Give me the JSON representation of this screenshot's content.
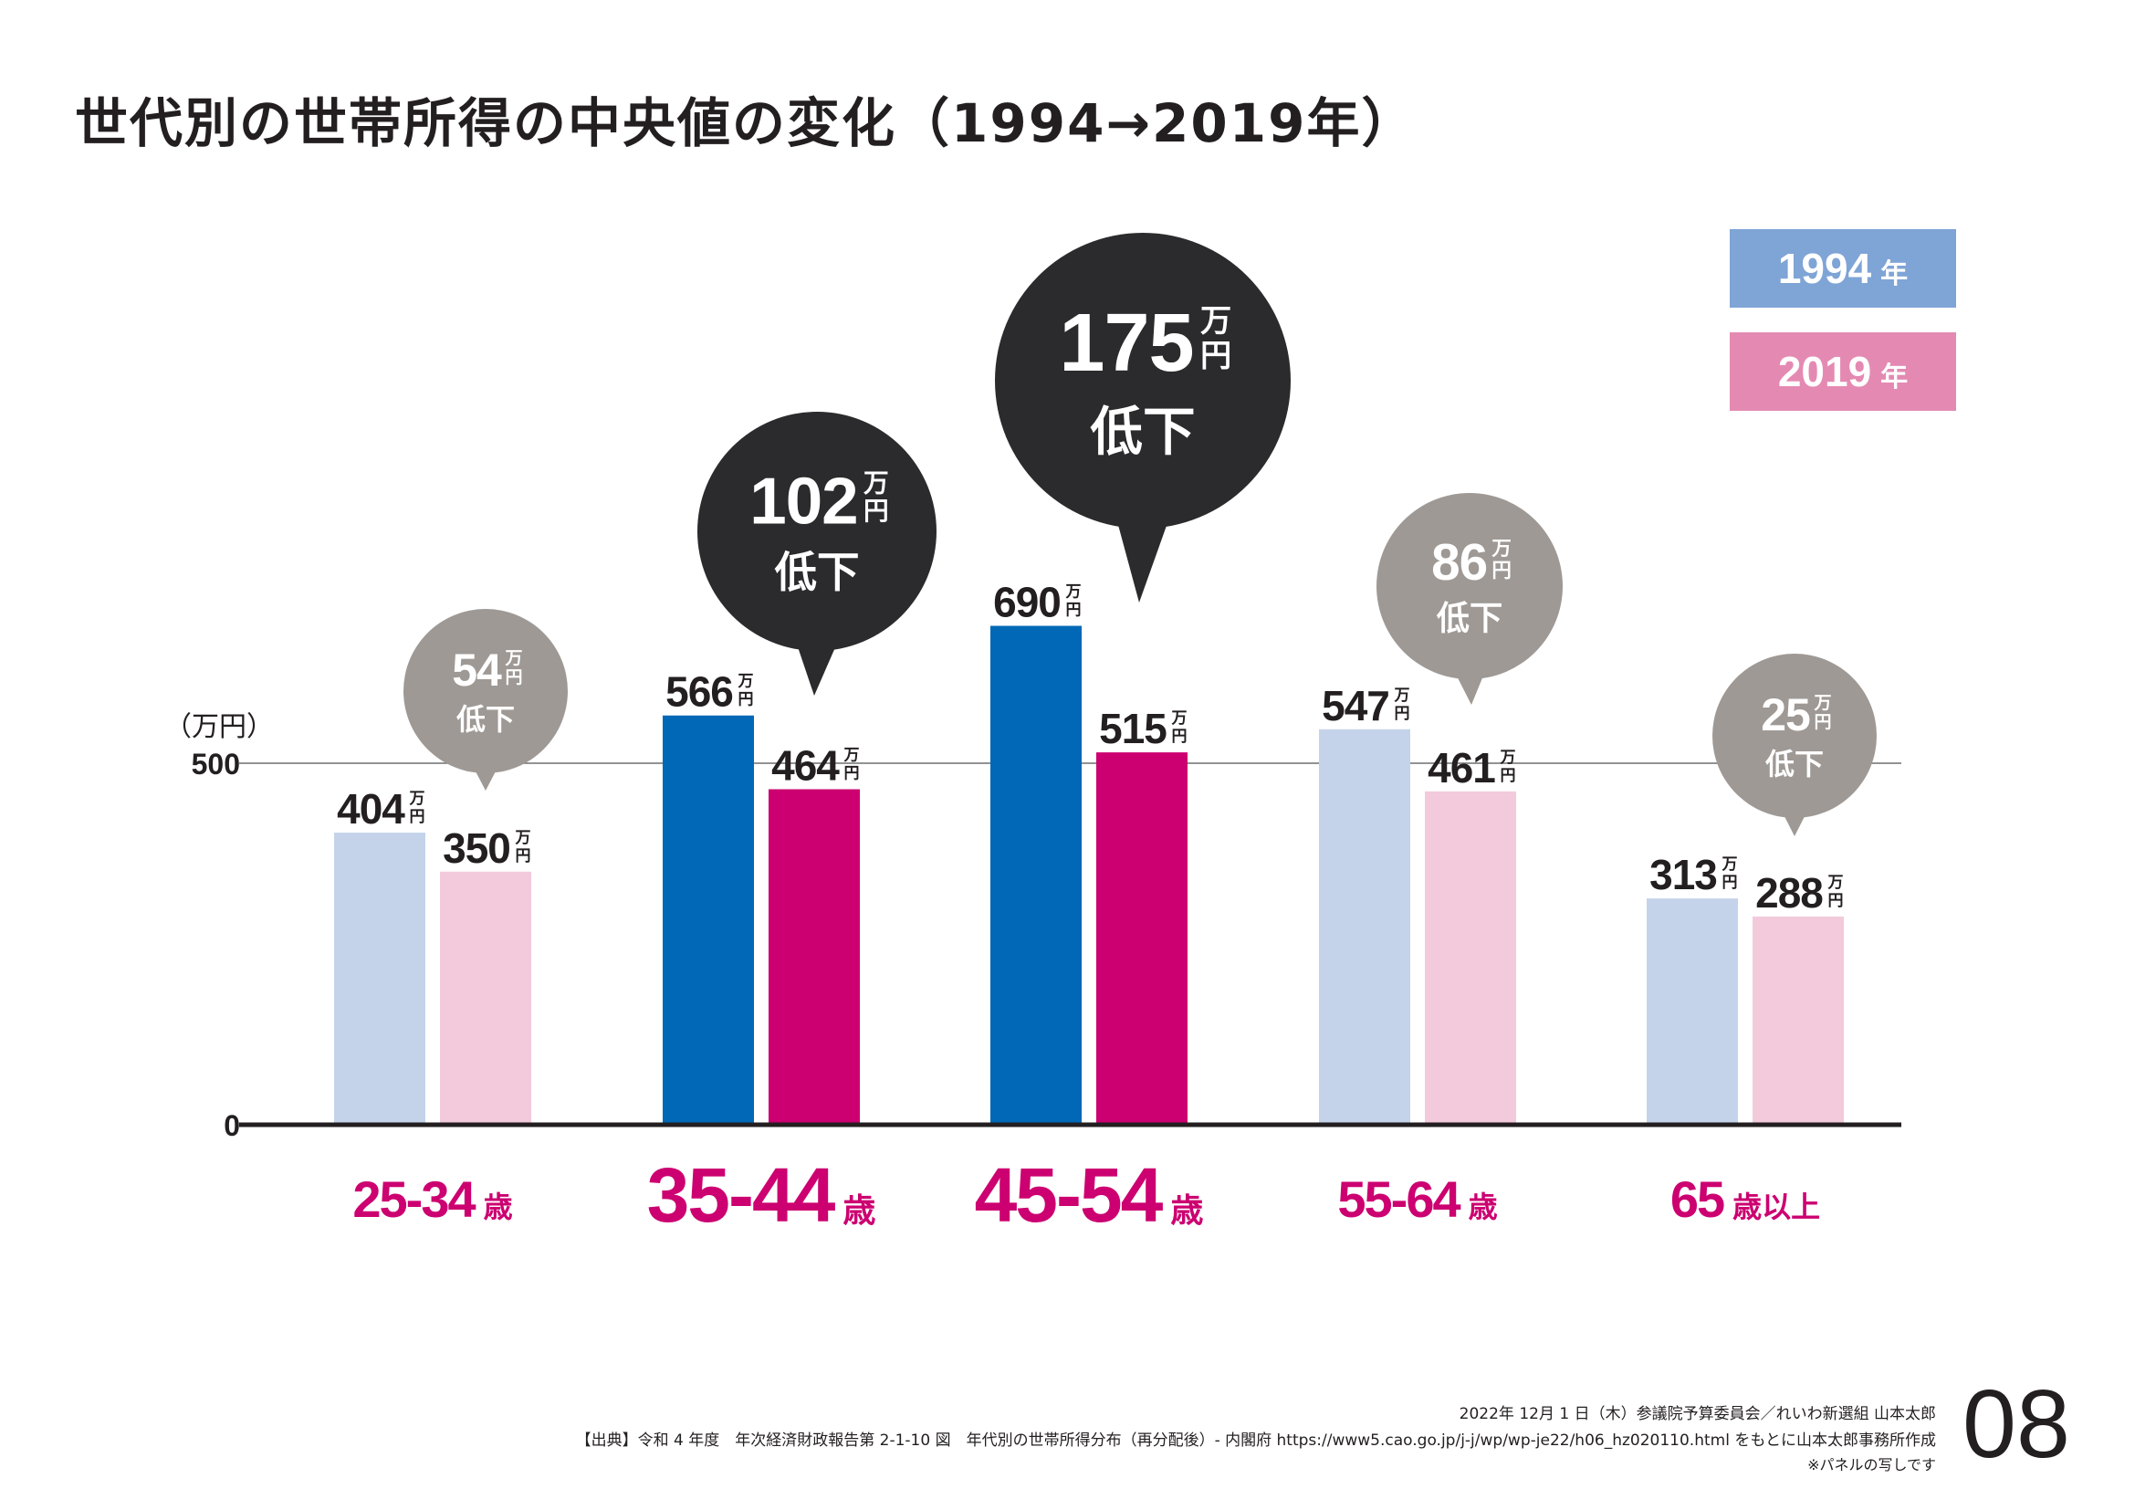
{
  "title": "世代別の世帯所得の中央値の変化（1994→2019年）",
  "legend": [
    {
      "year": "1994",
      "unit": "年",
      "color": "#7fa4d6"
    },
    {
      "year": "2019",
      "unit": "年",
      "color": "#e48ab2"
    }
  ],
  "colors": {
    "muted_1994": "#c5d3ea",
    "muted_2019": "#f3cadb",
    "strong_1994": "#0068b7",
    "strong_2019": "#cc0070",
    "bubble_gray": "#9e9995",
    "bubble_dark": "#2b2b2d",
    "age_label": "#cc0070",
    "text": "#231f20"
  },
  "chart_data": {
    "type": "bar",
    "categories": [
      "25-34",
      "35-44",
      "45-54",
      "55-64",
      "65"
    ],
    "category_suffix": [
      "歳",
      "歳",
      "歳",
      "歳",
      "歳以上"
    ],
    "series": [
      {
        "name": "1994年",
        "values": [
          404,
          566,
          690,
          547,
          313
        ]
      },
      {
        "name": "2019年",
        "values": [
          350,
          464,
          515,
          461,
          288
        ]
      }
    ],
    "highlighted": [
      false,
      true,
      true,
      false,
      false
    ],
    "ylabel": "（万円）",
    "yticks": [
      0,
      500
    ],
    "ylim": [
      0,
      800
    ],
    "value_unit": "万円",
    "drops": [
      {
        "value": "54",
        "unit": "万円",
        "label": "低下"
      },
      {
        "value": "102",
        "unit": "万円",
        "label": "低下"
      },
      {
        "value": "175",
        "unit": "万円",
        "label": "低下"
      },
      {
        "value": "86",
        "unit": "万円",
        "label": "低下"
      },
      {
        "value": "25",
        "unit": "万円",
        "label": "低下"
      }
    ]
  },
  "footer": {
    "date": "2022年 12月 1 日（木）参議院予算委員会／れいわ新選組 山本太郎",
    "source": "【出典】令和 4 年度　年次経済財政報告第 2-1-10 図　年代別の世帯所得分布（再分配後）- 内閣府 https://www5.cao.go.jp/j-j/wp/wp-je22/h06_hz020110.html をもとに山本太郎事務所作成",
    "note": "※パネルの写しです",
    "page": "08"
  }
}
